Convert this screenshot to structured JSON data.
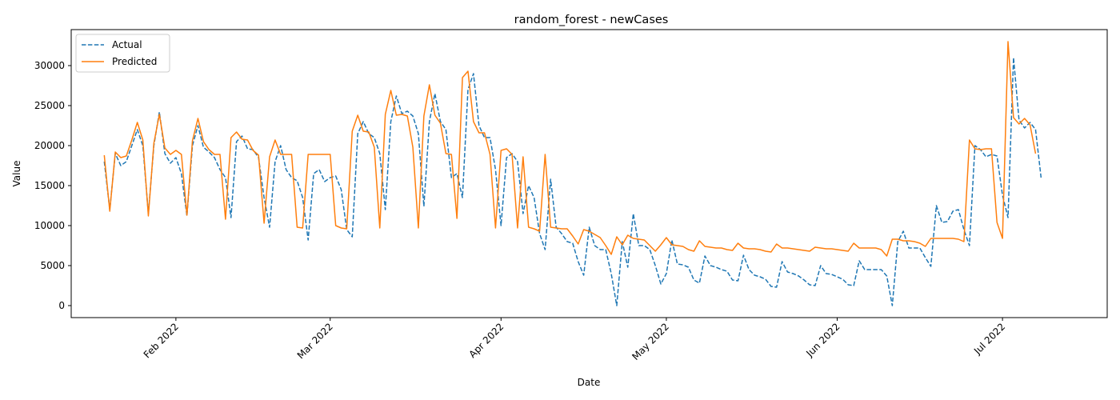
{
  "chart_data": {
    "type": "line",
    "title": "random_forest - newCases",
    "xlabel": "Date",
    "ylabel": "Value",
    "xlim": [
      "2022-01-13",
      "2022-07-20"
    ],
    "ylim": [
      -1500,
      34500
    ],
    "y_ticks": [
      0,
      5000,
      10000,
      15000,
      20000,
      25000,
      30000
    ],
    "x_ticks": [
      {
        "date": "2022-02-01",
        "label": "Feb 2022"
      },
      {
        "date": "2022-03-01",
        "label": "Mar 2022"
      },
      {
        "date": "2022-04-01",
        "label": "Apr 2022"
      },
      {
        "date": "2022-05-01",
        "label": "May 2022"
      },
      {
        "date": "2022-06-01",
        "label": "Jun 2022"
      },
      {
        "date": "2022-07-01",
        "label": "Jul 2022"
      }
    ],
    "legend_position": "top-left",
    "x_start": "2022-01-19",
    "series": [
      {
        "name": "Actual",
        "color": "#1f77b4",
        "style": "dashed",
        "values": [
          18000,
          12000,
          19000,
          17500,
          18000,
          20000,
          22000,
          20000,
          11500,
          20000,
          24200,
          19000,
          17800,
          18500,
          16500,
          11200,
          20000,
          22500,
          19800,
          19200,
          18500,
          17000,
          16000,
          11000,
          20500,
          21200,
          19600,
          19500,
          18500,
          13500,
          9800,
          18000,
          20000,
          17000,
          16000,
          15600,
          13500,
          8200,
          16500,
          17000,
          15500,
          16000,
          16200,
          14500,
          9500,
          8600,
          21500,
          23000,
          21500,
          21000,
          19000,
          12000,
          23000,
          26200,
          24000,
          24300,
          23700,
          21500,
          12400,
          23000,
          26500,
          23000,
          22000,
          16000,
          16500,
          13500,
          27000,
          29000,
          22500,
          21000,
          21000,
          17000,
          10000,
          18500,
          19000,
          18000,
          11500,
          15000,
          13500,
          9000,
          7000,
          15800,
          9800,
          9000,
          8000,
          7800,
          5500,
          3800,
          9800,
          7500,
          7000,
          7000,
          4000,
          0,
          8000,
          4800,
          11500,
          7500,
          7500,
          7000,
          5000,
          2700,
          4000,
          8200,
          5200,
          5100,
          4800,
          3200,
          2800,
          6200,
          5000,
          4800,
          4500,
          4300,
          3200,
          3100,
          6300,
          4500,
          3800,
          3600,
          3300,
          2400,
          2300,
          5500,
          4200,
          4000,
          3700,
          3200,
          2600,
          2500,
          5000,
          4000,
          3900,
          3600,
          3300,
          2600,
          2500,
          5600,
          4500,
          4500,
          4500,
          4500,
          3700,
          0,
          8000,
          9300,
          7200,
          7200,
          7200,
          6000,
          4900,
          12500,
          10400,
          10500,
          11800,
          12000,
          9500,
          7500,
          20000,
          19500,
          18600,
          18900,
          18700,
          13800,
          11000,
          31000,
          23200,
          22200,
          22900,
          22000,
          16000
        ]
      },
      {
        "name": "Predicted",
        "color": "#ff7f0e",
        "style": "solid",
        "values": [
          18800,
          11800,
          19200,
          18500,
          18700,
          20700,
          22900,
          20700,
          11200,
          20300,
          23900,
          19700,
          18900,
          19400,
          18900,
          11300,
          20600,
          23400,
          20500,
          19500,
          18900,
          18900,
          10800,
          21000,
          21700,
          20800,
          20700,
          19400,
          18800,
          10300,
          18600,
          20700,
          18900,
          18900,
          18900,
          9800,
          9700,
          18900,
          18900,
          18900,
          18900,
          18900,
          10000,
          9700,
          9600,
          21800,
          23800,
          21800,
          21700,
          19800,
          9700,
          23900,
          26900,
          23800,
          23900,
          23700,
          19800,
          9700,
          23700,
          27600,
          23800,
          22800,
          19000,
          18900,
          10900,
          28500,
          29300,
          23000,
          21600,
          21600,
          18900,
          9700,
          19400,
          19600,
          18900,
          9700,
          18600,
          9800,
          9600,
          9300,
          18900,
          9800,
          9700,
          9600,
          9600,
          8700,
          7700,
          9500,
          9300,
          8900,
          8500,
          7500,
          6400,
          8600,
          7600,
          8800,
          8400,
          8300,
          8200,
          7500,
          6800,
          7600,
          8500,
          7600,
          7500,
          7400,
          7000,
          6800,
          8100,
          7400,
          7300,
          7200,
          7200,
          7000,
          6900,
          7800,
          7200,
          7100,
          7100,
          7000,
          6800,
          6700,
          7700,
          7200,
          7200,
          7100,
          7000,
          6900,
          6800,
          7300,
          7200,
          7100,
          7100,
          7000,
          6900,
          6800,
          7800,
          7200,
          7200,
          7200,
          7200,
          7000,
          6200,
          8300,
          8300,
          8100,
          8100,
          8000,
          7800,
          7400,
          8400,
          8400,
          8400,
          8400,
          8400,
          8300,
          8000,
          20700,
          19600,
          19500,
          19600,
          19600,
          10400,
          8400,
          33000,
          23500,
          22700,
          23400,
          22600,
          19000
        ]
      }
    ]
  }
}
